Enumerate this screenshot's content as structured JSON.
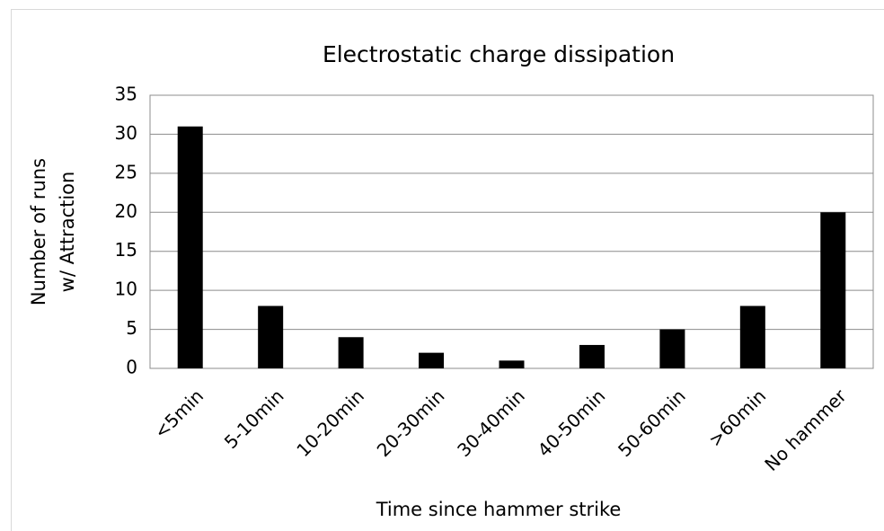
{
  "chart_data": {
    "type": "bar",
    "title": "Electrostatic charge dissipation",
    "y_label": [
      "Number of runs",
      "w/ Attraction"
    ],
    "x_label": "Time since hammer strike",
    "categories": [
      "<5min",
      "5-10min",
      "10-20min",
      "20-30min",
      "30-40min",
      "40-50min",
      "50-60min",
      ">60min",
      "No hammer"
    ],
    "values": [
      31,
      8,
      4,
      2,
      1,
      3,
      5,
      8,
      20
    ],
    "color": "#000000",
    "ylim": [
      0,
      35
    ],
    "yticks": [
      0,
      5,
      10,
      15,
      20,
      25,
      30,
      35
    ],
    "grid": true
  }
}
